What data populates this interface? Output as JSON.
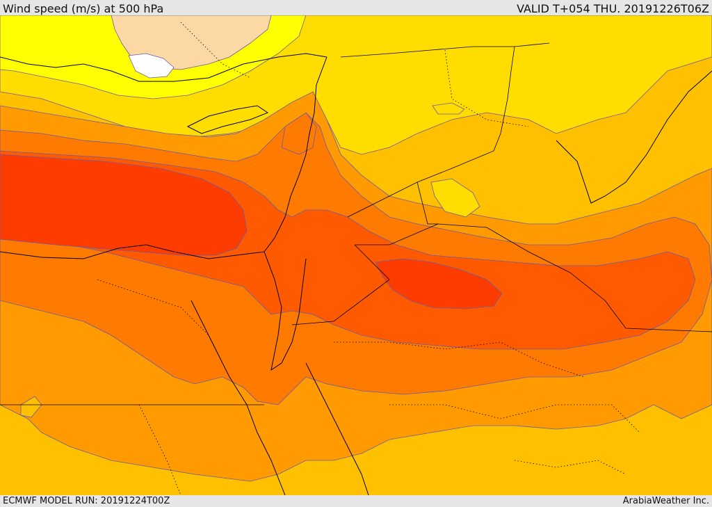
{
  "header": {
    "title": "Wind speed (m/s) at 500 hPa",
    "valid": "VALID T+054 THU. 20191226T06Z"
  },
  "footer": {
    "model_run": "ECMWF MODEL RUN: 20191224T00Z",
    "credit": "ArabiaWeather Inc."
  },
  "palette": {
    "white": "#ffffff",
    "peach": "#fcd9a4",
    "yellow": "#ffff00",
    "gold": "#ffdd00",
    "amber": "#ffc000",
    "orange": "#ff9b00",
    "dark_orange": "#ff7a00",
    "red_orange": "#ff5a00",
    "red": "#ff3c00",
    "contour": "#6b5aa8",
    "border": "#000000"
  }
}
